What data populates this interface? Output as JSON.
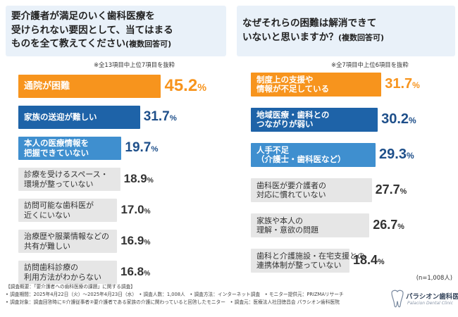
{
  "left": {
    "title_lines": [
      "要介護者が満足のいく歯科医療を",
      "受けられない要因として、当てはまる",
      "ものを全て教えてください"
    ],
    "title_suffix": "(複数回答可)",
    "note": "※全13項目中上位7項目を抜粋"
  },
  "right": {
    "title_lines": [
      "なぜそれらの困難は解消できて",
      "いないと思いますか？"
    ],
    "title_suffix": "(複数回答可)",
    "note": "※全7項目中上位6項目を抜粋"
  },
  "chart_data": [
    {
      "type": "bar",
      "title": "要介護者が満足のいく歯科医療を受けられない要因として、当てはまるものを全て教えてください(複数回答可)",
      "unit": "%",
      "categories": [
        [
          "通院が困難"
        ],
        [
          "家族の送迎が難しい"
        ],
        [
          "本人の医療情報を",
          "把握できていない"
        ],
        [
          "診療を受けるスペース・",
          "環境が整っていない"
        ],
        [
          "訪問可能な歯科医が",
          "近くにいない"
        ],
        [
          "治療歴や服薬情報などの",
          "共有が難しい"
        ],
        [
          "訪問歯科診療の",
          "利用方法がわからない"
        ]
      ],
      "values": [
        45.2,
        31.7,
        19.7,
        18.9,
        17.0,
        16.9,
        16.8
      ],
      "display_values": [
        "45.2",
        "31.7",
        "19.7",
        "18.9",
        "17.0",
        "16.9",
        "16.8"
      ],
      "styles": [
        "orange",
        "blue",
        "lightblue",
        "gray",
        "gray",
        "gray",
        "gray"
      ]
    },
    {
      "type": "bar",
      "title": "なぜそれらの困難は解消できていないと思いますか？(複数回答可)",
      "unit": "%",
      "categories": [
        [
          "制度上の支援や",
          "情報が不足している"
        ],
        [
          "地域医療・歯科との",
          "つながりが弱い"
        ],
        [
          "人手不足",
          "（介護士・歯科医など）"
        ],
        [
          "歯科医が要介護者の",
          "対応に慣れていない"
        ],
        [
          "家族や本人の",
          "理解・意欲の問題"
        ],
        [
          "歯科と介護施設・在宅支援との",
          "連携体制が整っていない"
        ]
      ],
      "values": [
        31.7,
        30.2,
        29.3,
        27.7,
        26.7,
        18.4
      ],
      "display_values": [
        "31.7",
        "30.2",
        "29.3",
        "27.7",
        "26.7",
        "18.4"
      ],
      "styles": [
        "orange",
        "blue",
        "lightblue",
        "gray",
        "gray",
        "gray"
      ],
      "sample": "(n=1,008人)"
    }
  ],
  "colors": {
    "orange": "#f7941d",
    "orange_text": "#ffffff",
    "orange_pct": "#f7941d",
    "blue": "#1e63a8",
    "blue_text": "#ffffff",
    "blue_pct": "#1e4f8a",
    "lightblue": "#3f8fcf",
    "lightblue_text": "#ffffff",
    "lightblue_pct": "#1e4f8a",
    "gray": "#e6e6e6",
    "gray_text": "#333333",
    "gray_pct": "#333333",
    "title_bg": "#e9f1f9"
  },
  "footer": {
    "lines": [
      "【調査概要：「要介護者への歯科医療の課題」に関する調査】",
      "• 調査期間：2025年4月22日（火）〜2025年4月23日（水）　• 調査人数：1,008人　• 調査方法：インターネット調査　• モニター提供元：PRIZMAリサーチ",
      "• 調査対象：調査回答時に①介護従事者②要介護者である家族の介護に関わっていると回答したモニター　• 調査元：医療法人社団徳昌会 パラシオン歯科医院"
    ]
  },
  "logo": {
    "name": "パラシオン歯科医院",
    "tagline": "Palacion Dental Clinic"
  }
}
